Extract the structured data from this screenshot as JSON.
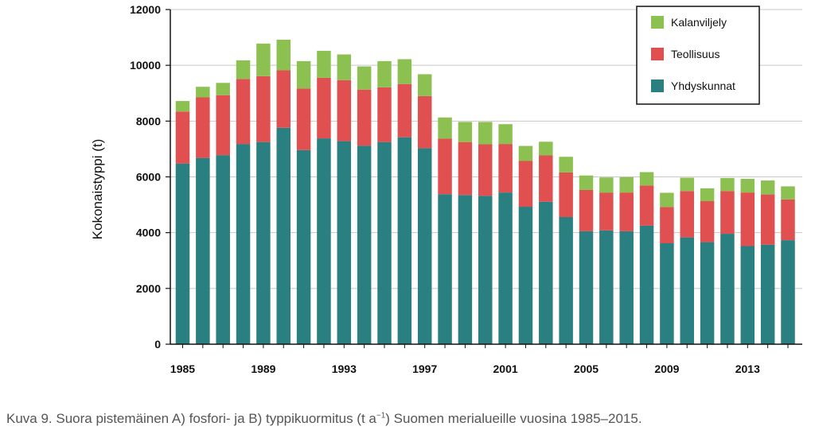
{
  "chart_data": {
    "type": "bar",
    "stacked": true,
    "ylabel": "Kokonaistyppi (t)",
    "ylim": [
      0,
      12000
    ],
    "y_ticks": [
      0,
      2000,
      4000,
      6000,
      8000,
      10000,
      12000
    ],
    "x_tick_labels": [
      "1985",
      "1989",
      "1993",
      "1997",
      "2001",
      "2005",
      "2009",
      "2013"
    ],
    "grid": "horizontal",
    "legend_position": "top-right",
    "categories": [
      "1985",
      "1986",
      "1987",
      "1988",
      "1989",
      "1990",
      "1991",
      "1992",
      "1993",
      "1994",
      "1995",
      "1996",
      "1997",
      "1998",
      "1999",
      "2000",
      "2001",
      "2002",
      "2003",
      "2004",
      "2005",
      "2006",
      "2007",
      "2008",
      "2009",
      "2010",
      "2011",
      "2012",
      "2013",
      "2014",
      "2015"
    ],
    "series": [
      {
        "name": "Yhdyskunnat",
        "color": "#2a7f80",
        "values": [
          6480,
          6680,
          6780,
          7180,
          7250,
          7760,
          6960,
          7380,
          7280,
          7120,
          7250,
          7420,
          7030,
          5380,
          5350,
          5320,
          5440,
          4930,
          5110,
          4560,
          4050,
          4080,
          4050,
          4250,
          3620,
          3830,
          3660,
          3960,
          3520,
          3570,
          3730
        ]
      },
      {
        "name": "Teollisuus",
        "color": "#e05050",
        "values": [
          1860,
          2170,
          2150,
          2330,
          2360,
          2060,
          2210,
          2170,
          2190,
          2010,
          1960,
          1910,
          1870,
          1990,
          1900,
          1850,
          1740,
          1640,
          1660,
          1600,
          1480,
          1350,
          1390,
          1440,
          1300,
          1660,
          1470,
          1530,
          1920,
          1800,
          1460
        ]
      },
      {
        "name": "Kalanviljely",
        "color": "#8cc152",
        "values": [
          380,
          380,
          440,
          670,
          1170,
          1100,
          980,
          970,
          920,
          830,
          940,
          890,
          780,
          760,
          720,
          800,
          710,
          540,
          490,
          560,
          520,
          550,
          550,
          480,
          510,
          480,
          460,
          470,
          490,
          500,
          470
        ]
      }
    ]
  },
  "caption": {
    "prefix": "Kuva 9. Suora pistemäinen A) fosfori- ja B) typpikuormitus (t a",
    "sup": "−1",
    "suffix": ") Suomen merialueille vuosina 1985–2015."
  }
}
